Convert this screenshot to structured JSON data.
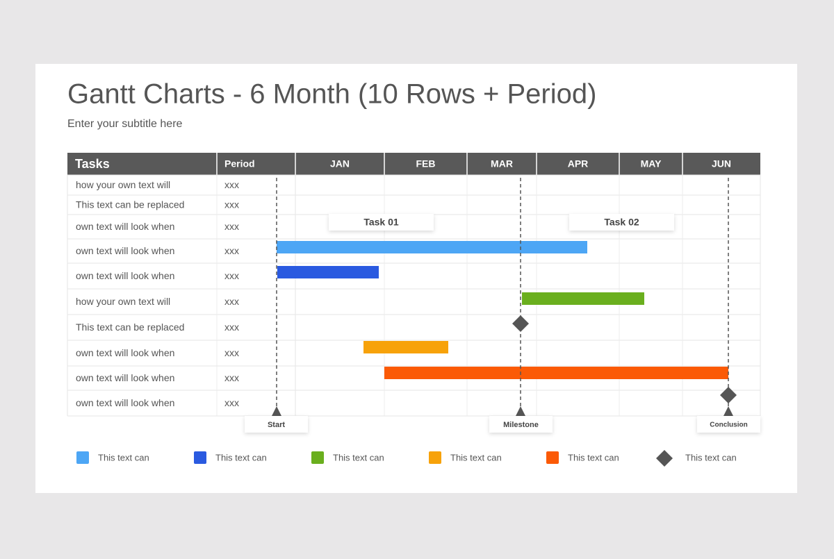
{
  "header": {
    "title": "Gantt Charts - 6 Month (10 Rows + Period)",
    "subtitle": "Enter your subtitle here"
  },
  "table": {
    "columns": [
      "Tasks",
      "Period",
      "JAN",
      "FEB",
      "MAR",
      "APR",
      "MAY",
      "JUN"
    ],
    "rows": [
      [
        "how your own text will",
        "xxx"
      ],
      [
        "This text can be replaced",
        "xxx"
      ],
      [
        "own text will look when",
        "xxx"
      ],
      [
        "own text will look when",
        "xxx"
      ],
      [
        "own text will look when",
        "xxx"
      ],
      [
        "how your own text will",
        "xxx"
      ],
      [
        "This text can be replaced",
        "xxx"
      ],
      [
        "own text will look when",
        "xxx"
      ],
      [
        "own text will look when",
        "xxx"
      ],
      [
        "own text will look when",
        "xxx"
      ]
    ]
  },
  "callouts": [
    "Task 01",
    "Task 02"
  ],
  "milestones": [
    "Start",
    "Milestone",
    "Conclusion"
  ],
  "legend": [
    "This text can",
    "This text can",
    "This text can",
    "This text can",
    "This text can",
    "This text can"
  ]
}
